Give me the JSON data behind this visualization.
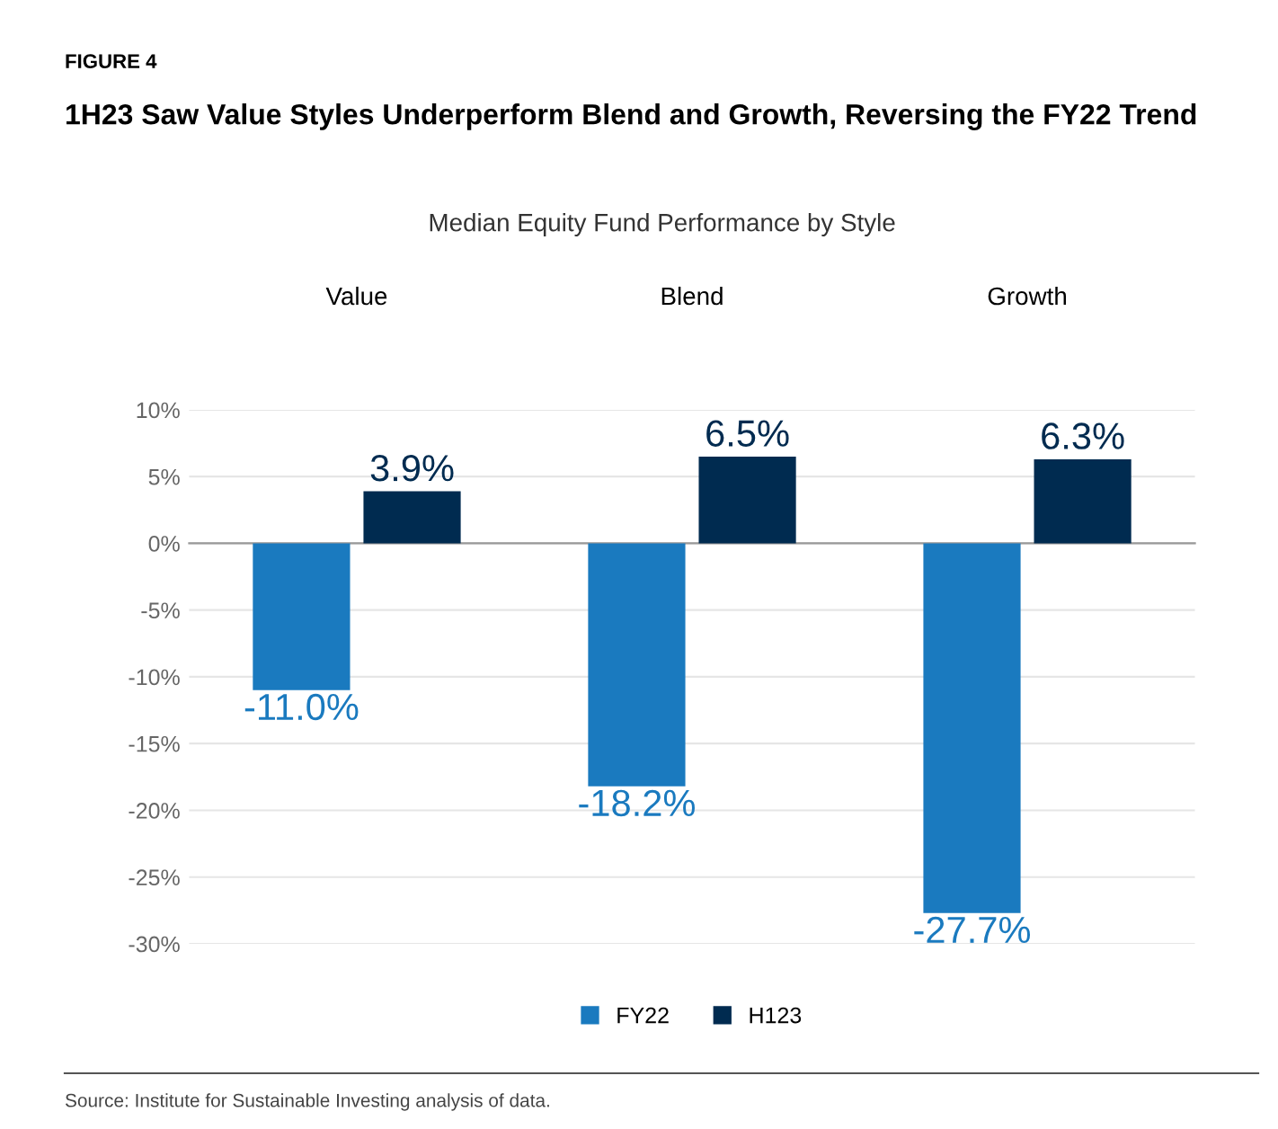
{
  "chart_data": {
    "type": "bar",
    "title": "1H23 Saw Value Styles Underperform Blend and Growth, Reversing the FY22 Trend",
    "subtitle": "Median Equity Fund Performance by Style",
    "annotations": [
      "FIGURE 4",
      "Source: Institute for Sustainable Investing analysis of data."
    ],
    "categories": [
      "Value",
      "Blend",
      "Growth"
    ],
    "series": [
      {
        "name": "FY22",
        "color": "#1a7abf",
        "values": [
          -11.0,
          -18.2,
          -27.7
        ],
        "value_labels": [
          "-11.0%",
          "-18.2%",
          "-27.7%"
        ]
      },
      {
        "name": "H123",
        "color": "#002b50",
        "values": [
          3.9,
          6.5,
          6.3
        ],
        "value_labels": [
          "3.9%",
          "6.5%",
          "6.3%"
        ]
      }
    ],
    "ylim": [
      -30,
      10
    ],
    "yticks": [
      {
        "value": -30,
        "label": "-30%"
      },
      {
        "value": -25,
        "label": "-25%"
      },
      {
        "value": -20,
        "label": "-20%"
      },
      {
        "value": -15,
        "label": "-15%"
      },
      {
        "value": -10,
        "label": "-10%"
      },
      {
        "value": -5,
        "label": "-5%"
      },
      {
        "value": 0,
        "label": "0%"
      },
      {
        "value": 5,
        "label": "5%"
      },
      {
        "value": 10,
        "label": "10%"
      }
    ],
    "grid": "y",
    "legend": "bottom"
  }
}
